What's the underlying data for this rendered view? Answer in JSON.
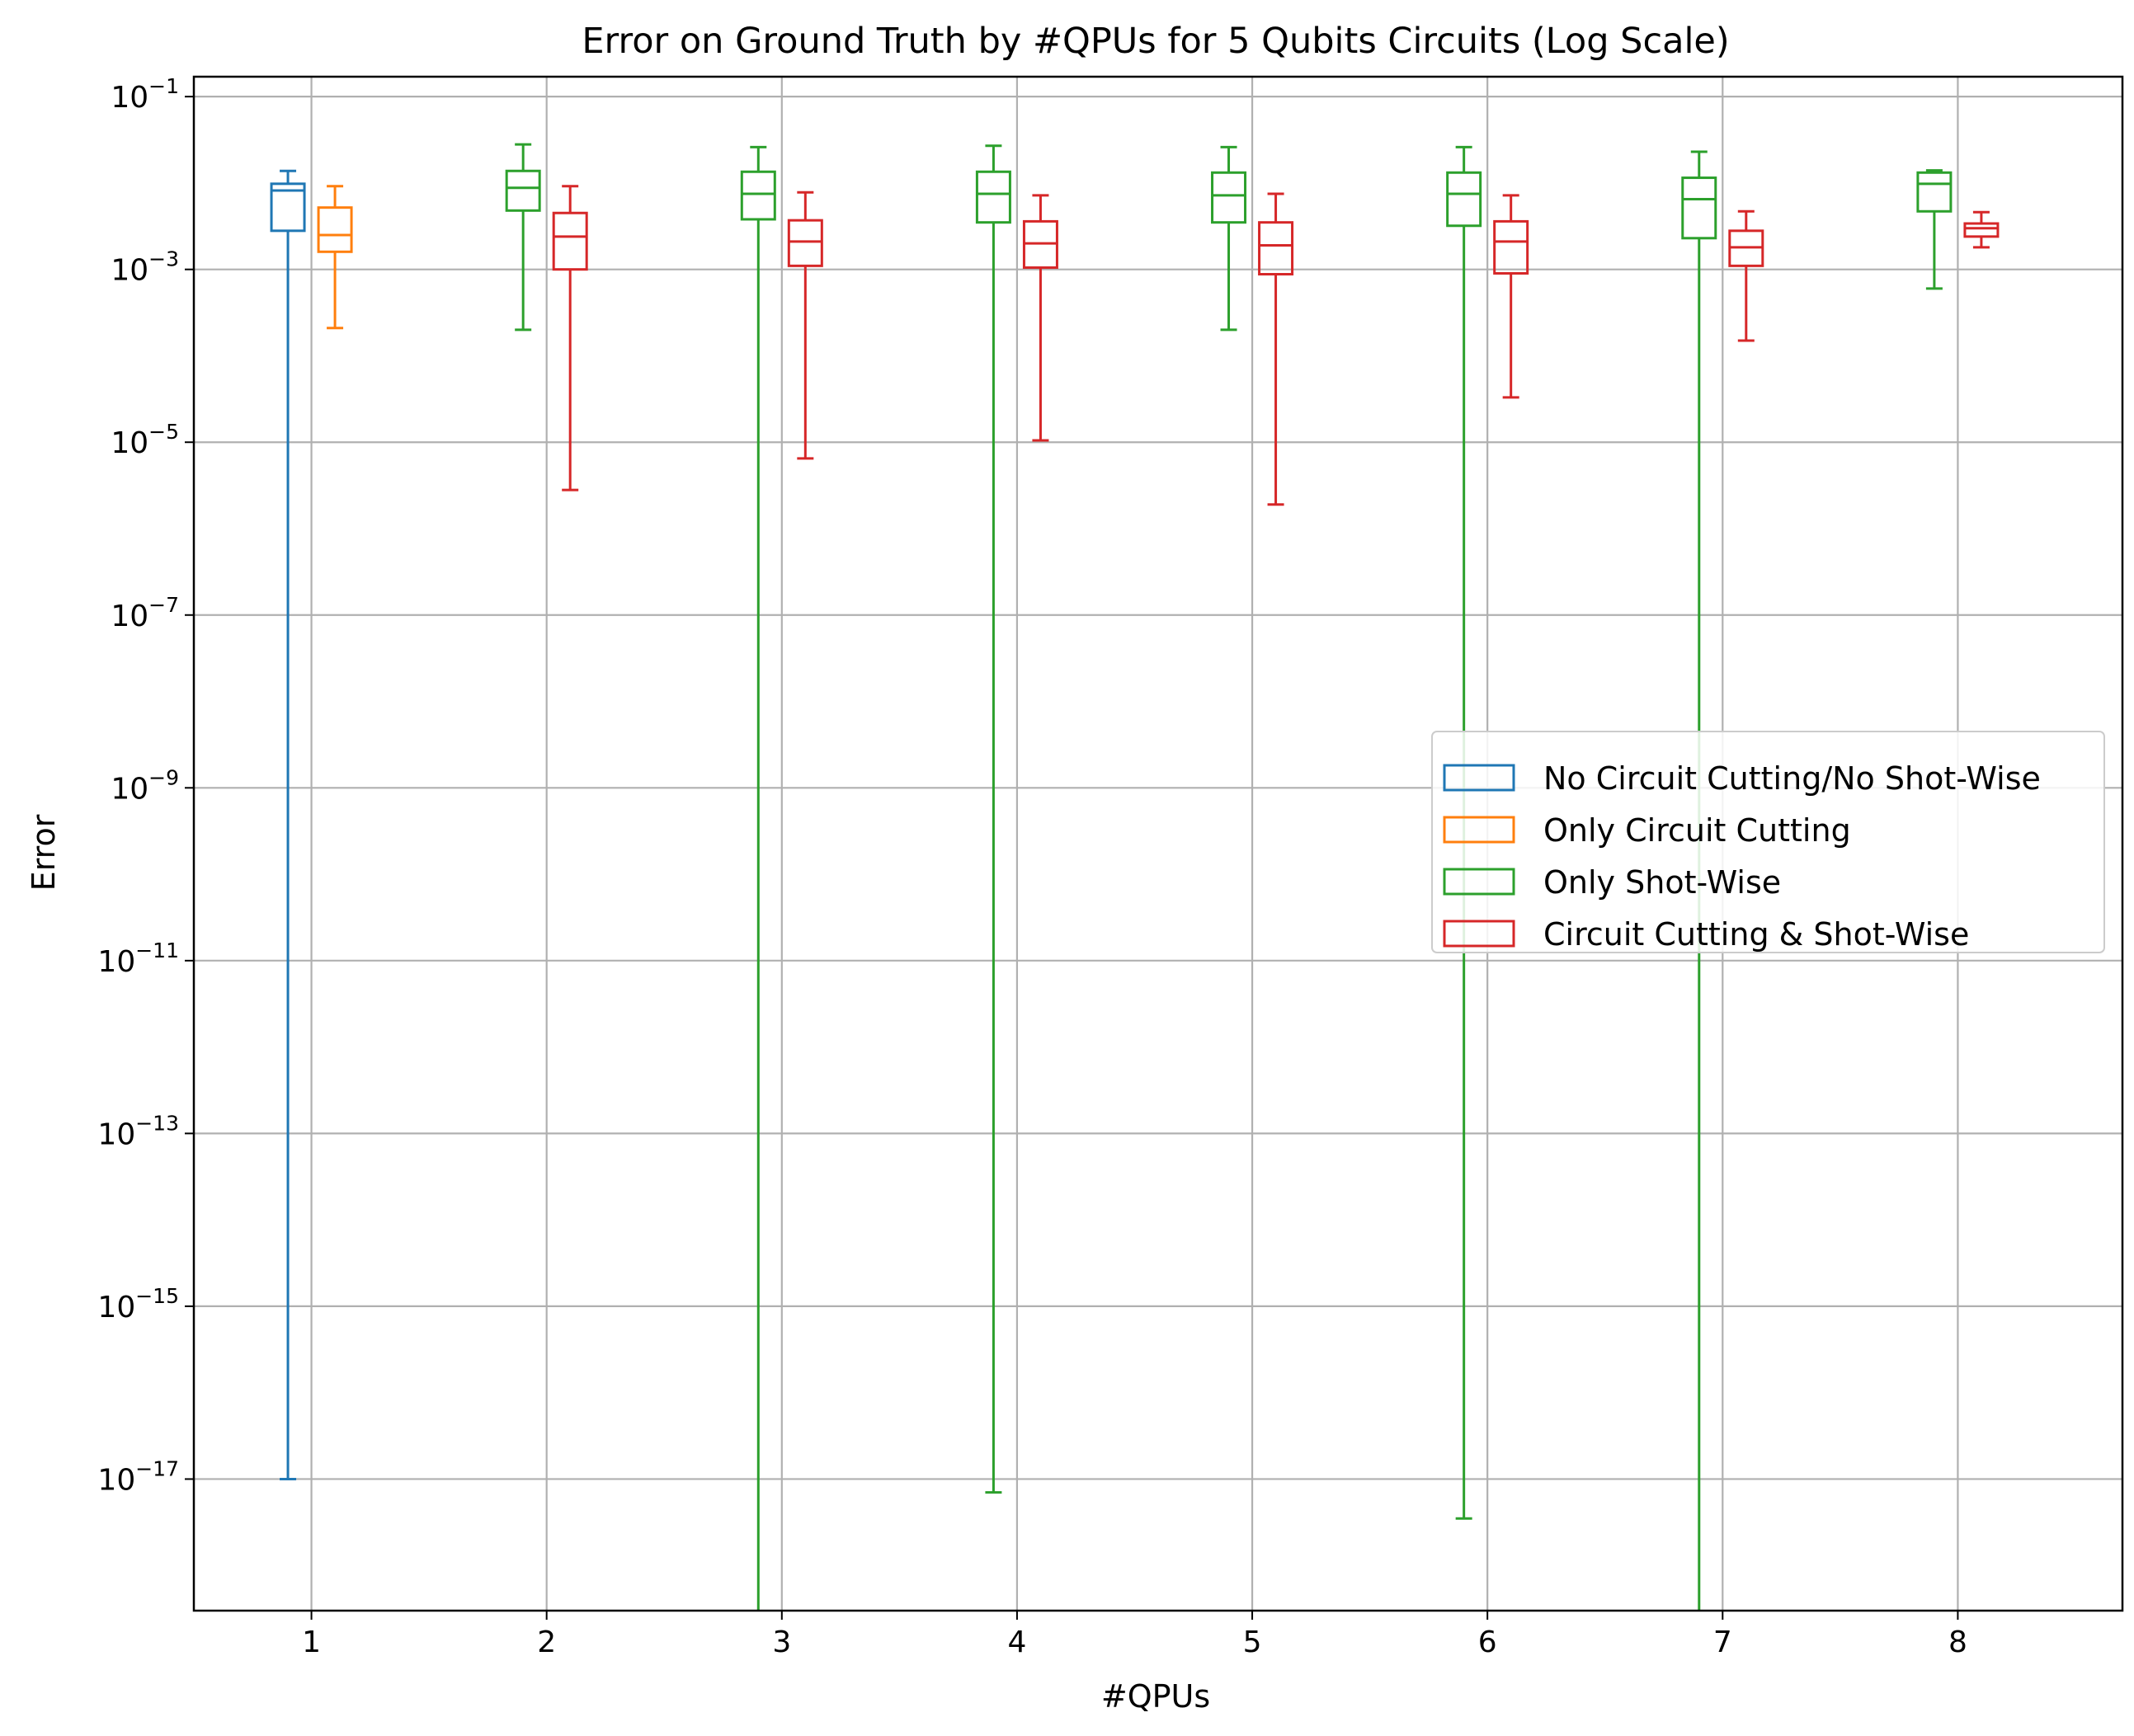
{
  "chart_data": {
    "type": "box",
    "title": "Error on Ground Truth by #QPUs for 5 Qubits Circuits (Log Scale)",
    "xlabel": "#QPUs",
    "ylabel": "Error",
    "yscale": "log",
    "ylim": [
      3e-19,
      0.17
    ],
    "xlim": [
      0.5,
      8.7
    ],
    "grid": true,
    "legend_position": "center-right",
    "categories": [
      1,
      2,
      3,
      4,
      5,
      6,
      7,
      8
    ],
    "y_ticks": [
      {
        "base": "10",
        "exp": "−1",
        "value": 0.1
      },
      {
        "base": "10",
        "exp": "−3",
        "value": 0.001
      },
      {
        "base": "10",
        "exp": "−5",
        "value": 1e-05
      },
      {
        "base": "10",
        "exp": "−7",
        "value": 1e-07
      },
      {
        "base": "10",
        "exp": "−9",
        "value": 1e-09
      },
      {
        "base": "10",
        "exp": "−11",
        "value": 1e-11
      },
      {
        "base": "10",
        "exp": "−13",
        "value": 1e-13
      },
      {
        "base": "10",
        "exp": "−15",
        "value": 1e-15
      },
      {
        "base": "10",
        "exp": "−17",
        "value": 1e-17
      }
    ],
    "series": [
      {
        "name": "No Circuit Cutting/No Shot-Wise",
        "color": "#1f77b4",
        "offset": -0.1,
        "boxes": [
          {
            "x": 1,
            "whislo": 1e-17,
            "q1": 0.0028,
            "med": 0.0082,
            "q3": 0.0098,
            "whishi": 0.0138
          }
        ]
      },
      {
        "name": "Only Circuit Cutting",
        "color": "#ff7f0e",
        "offset": 0.1,
        "boxes": [
          {
            "x": 1,
            "whislo": 0.00021,
            "q1": 0.0016,
            "med": 0.0025,
            "q3": 0.0052,
            "whishi": 0.0092
          }
        ]
      },
      {
        "name": "Only Shot-Wise",
        "color": "#2ca02c",
        "offset": -0.1,
        "boxes": [
          {
            "x": 2,
            "whislo": 0.0002,
            "q1": 0.0048,
            "med": 0.0088,
            "q3": 0.0138,
            "whishi": 0.028
          },
          {
            "x": 3,
            "whislo": 1e-19,
            "q1": 0.0038,
            "med": 0.0075,
            "q3": 0.0135,
            "whishi": 0.026
          },
          {
            "x": 4,
            "whislo": 7e-18,
            "q1": 0.0035,
            "med": 0.0075,
            "q3": 0.0135,
            "whishi": 0.027
          },
          {
            "x": 5,
            "whislo": 0.0002,
            "q1": 0.0035,
            "med": 0.0072,
            "q3": 0.0132,
            "whishi": 0.026
          },
          {
            "x": 6,
            "whislo": 3.5e-18,
            "q1": 0.0032,
            "med": 0.0075,
            "q3": 0.0132,
            "whishi": 0.026
          },
          {
            "x": 7,
            "whislo": 1e-19,
            "q1": 0.0023,
            "med": 0.0065,
            "q3": 0.0115,
            "whishi": 0.023
          },
          {
            "x": 8,
            "whislo": 0.0006,
            "q1": 0.0047,
            "med": 0.0098,
            "q3": 0.0132,
            "whishi": 0.014
          }
        ]
      },
      {
        "name": "Circuit Cutting & Shot-Wise",
        "color": "#d62728",
        "offset": 0.1,
        "boxes": [
          {
            "x": 2,
            "whislo": 2.8e-06,
            "q1": 0.001,
            "med": 0.0024,
            "q3": 0.0045,
            "whishi": 0.0092
          },
          {
            "x": 3,
            "whislo": 6.5e-06,
            "q1": 0.0011,
            "med": 0.0021,
            "q3": 0.0037,
            "whishi": 0.0078
          },
          {
            "x": 4,
            "whislo": 1.05e-05,
            "q1": 0.00105,
            "med": 0.002,
            "q3": 0.0036,
            "whishi": 0.0072
          },
          {
            "x": 5,
            "whislo": 1.9e-06,
            "q1": 0.00088,
            "med": 0.0019,
            "q3": 0.0035,
            "whishi": 0.0075
          },
          {
            "x": 6,
            "whislo": 3.3e-05,
            "q1": 0.0009,
            "med": 0.0021,
            "q3": 0.0036,
            "whishi": 0.0072
          },
          {
            "x": 7,
            "whislo": 0.00015,
            "q1": 0.0011,
            "med": 0.0018,
            "q3": 0.0028,
            "whishi": 0.0047
          },
          {
            "x": 8,
            "whislo": 0.0018,
            "q1": 0.0024,
            "med": 0.003,
            "q3": 0.0034,
            "whishi": 0.0046
          }
        ]
      }
    ]
  }
}
